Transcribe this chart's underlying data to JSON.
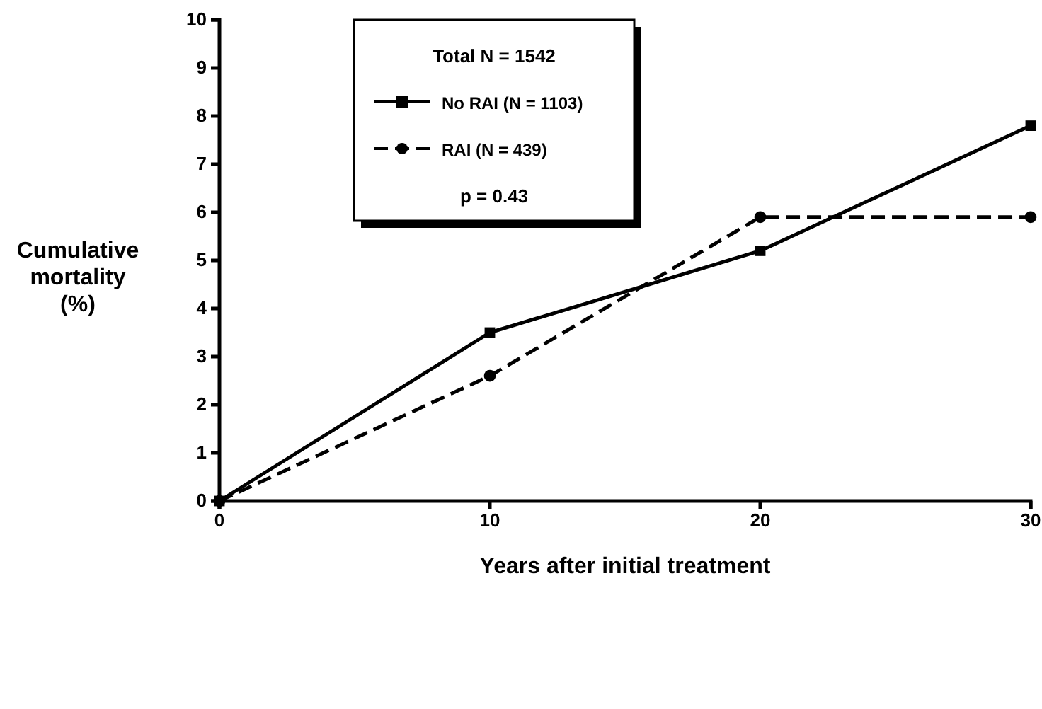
{
  "chart_data": {
    "type": "line",
    "xlabel": "Years after initial treatment",
    "ylabel": "Cumulative\nmortality\n(%)",
    "legend_title": "Total N = 1542",
    "annotations": [
      "p = 0.43"
    ],
    "x": [
      0,
      10,
      20,
      30
    ],
    "series": [
      {
        "name": "No RAI (N = 1103)",
        "color": "#000000",
        "values": [
          0,
          3.5,
          5.2,
          7.8
        ],
        "marker": "square",
        "line_style": "solid"
      },
      {
        "name": "RAI (N = 439)",
        "color": "#000000",
        "values": [
          0,
          2.6,
          5.9,
          5.9
        ],
        "marker": "circle",
        "line_style": "dashed"
      }
    ],
    "xlim": [
      0,
      30
    ],
    "xticks": [
      0,
      10,
      20,
      30
    ],
    "ylim": [
      0,
      10
    ],
    "yticks": [
      0,
      1,
      2,
      3,
      4,
      5,
      6,
      7,
      8,
      9,
      10
    ],
    "grid": false,
    "legend": "top"
  }
}
